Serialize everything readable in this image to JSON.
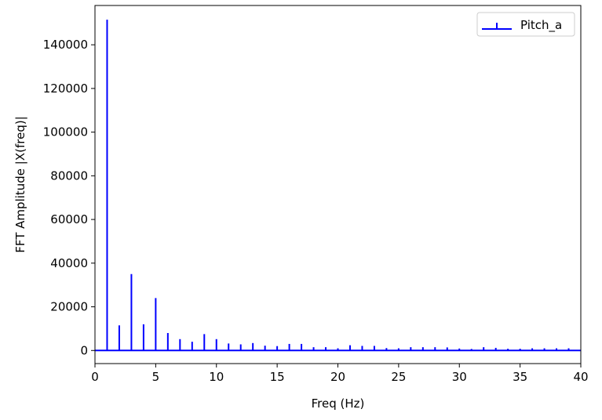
{
  "chart_data": {
    "type": "stem",
    "title": "",
    "xlabel": "Freq (Hz)",
    "ylabel": "FFT Amplitude |X(freq)|",
    "xlim": [
      0,
      40
    ],
    "ylim": [
      -6000,
      158000
    ],
    "xticks": [
      0,
      5,
      10,
      15,
      20,
      25,
      30,
      35,
      40
    ],
    "yticks": [
      0,
      20000,
      40000,
      60000,
      80000,
      100000,
      120000,
      140000
    ],
    "grid": false,
    "legend_position": "top-right",
    "series": [
      {
        "name": "Pitch_a",
        "color": "#0000ff",
        "x": [
          0,
          1,
          2,
          3,
          4,
          5,
          6,
          7,
          8,
          9,
          10,
          11,
          12,
          13,
          14,
          15,
          16,
          17,
          18,
          19,
          20,
          21,
          22,
          23,
          24,
          25,
          26,
          27,
          28,
          29,
          30,
          31,
          32,
          33,
          34,
          35,
          36,
          37,
          38,
          39,
          40
        ],
        "values": [
          0,
          151500,
          11500,
          35000,
          12000,
          24000,
          8000,
          5200,
          4000,
          7500,
          5200,
          3200,
          2800,
          3400,
          2200,
          2000,
          3000,
          3000,
          1500,
          1500,
          1000,
          2400,
          2100,
          2100,
          1100,
          1000,
          1500,
          1500,
          1500,
          1400,
          900,
          700,
          1500,
          1200,
          800,
          800,
          1000,
          1000,
          1000,
          1000,
          0
        ]
      }
    ]
  }
}
